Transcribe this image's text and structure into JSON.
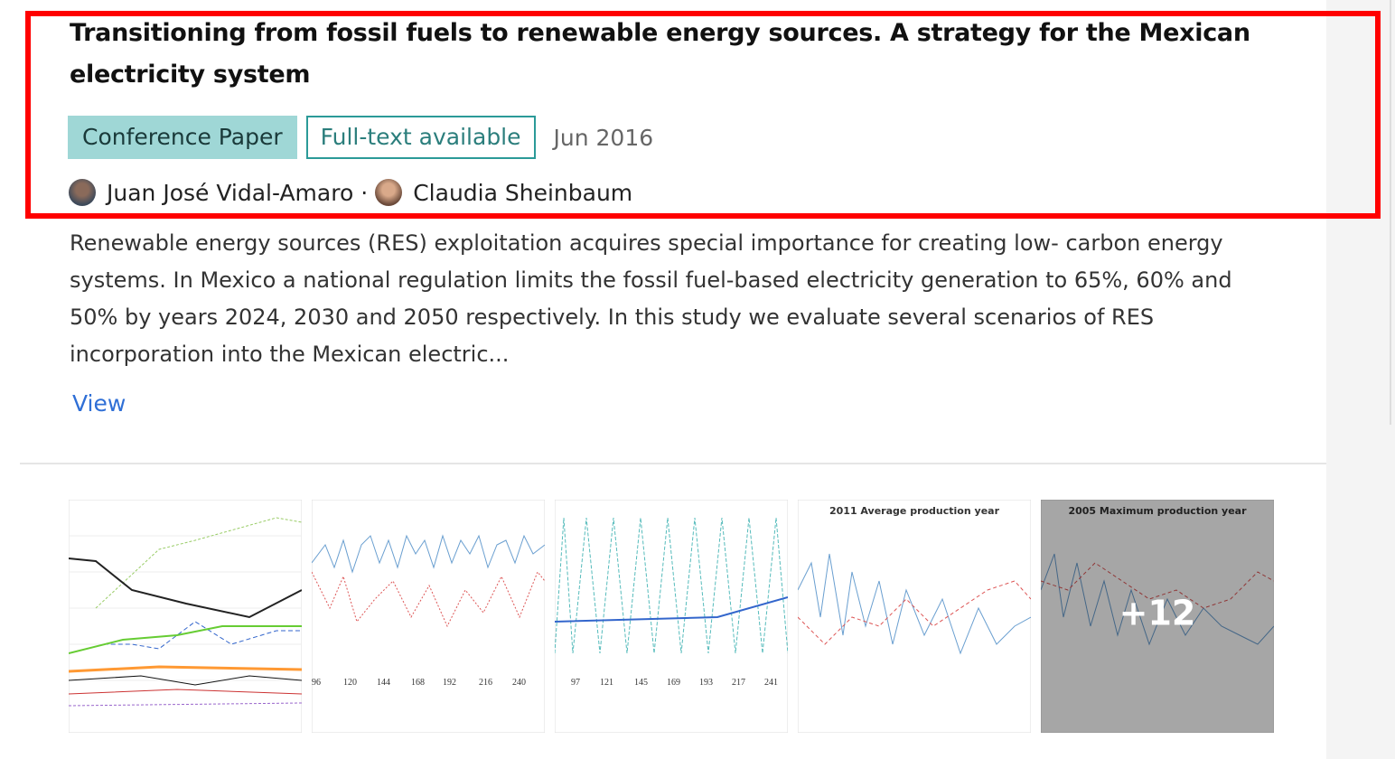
{
  "publication": {
    "title": "Transitioning from fossil fuels to renewable energy sources. A strategy for the Mexican electricity system",
    "type": "Conference Paper",
    "availability": "Full-text available",
    "date": "Jun 2016",
    "authors": [
      "Juan José Vidal-Amaro",
      "Claudia Sheinbaum"
    ],
    "author_separator": "·",
    "abstract": "Renewable energy sources (RES) exploitation acquires special importance for creating low- carbon energy systems. In Mexico a national regulation limits the fossil fuel-based electricity generation to 65%, 60% and 50% by years 2024, 2030 and 2050 respectively. In this study we evaluate several scenarios of RES incorporation into the Mexican electric...",
    "action": "View",
    "figure_titles": [
      "2011 Average production year",
      "2005 Maximum production year"
    ],
    "more_figures": "+12"
  }
}
